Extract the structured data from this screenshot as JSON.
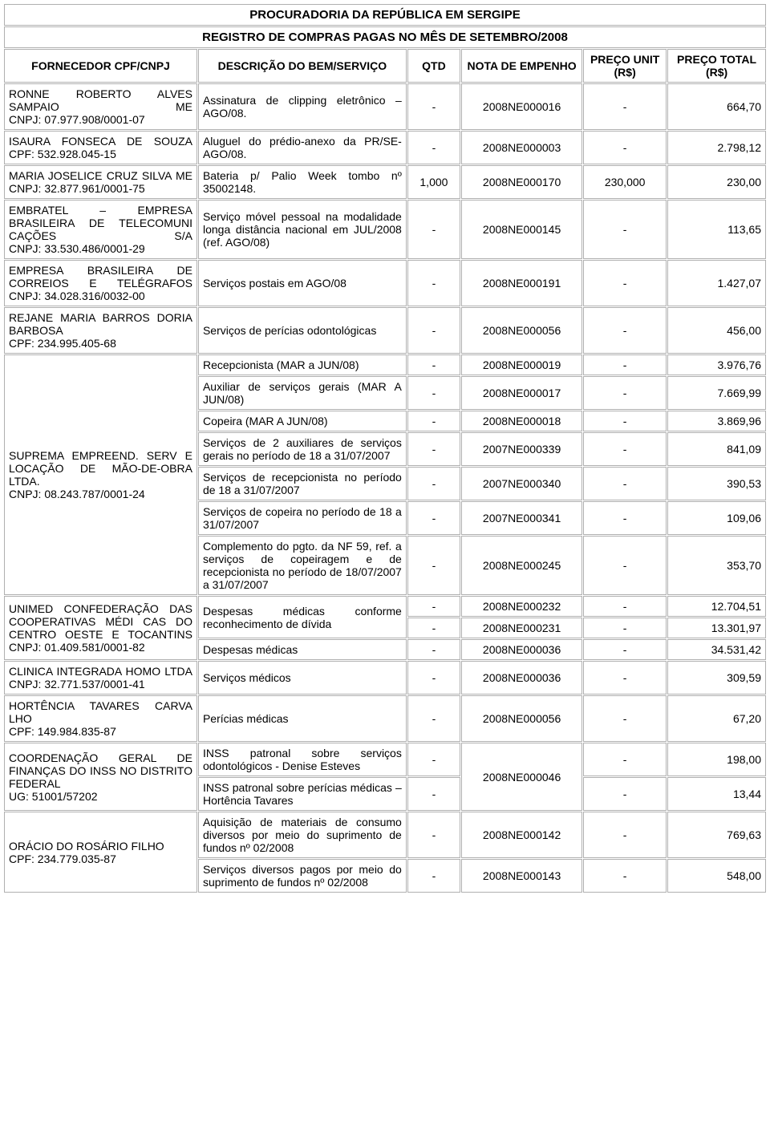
{
  "title1": "PROCURADORIA DA REPÚBLICA EM SERGIPE",
  "title2": "REGISTRO DE COMPRAS PAGAS NO MÊS DE SETEMBRO/2008",
  "headers": {
    "fornecedor": "FORNECEDOR CPF/CNPJ",
    "descricao": "DESCRIÇÃO DO BEM/SERVIÇO",
    "qtd": "QTD",
    "nota": "NOTA DE EMPENHO",
    "unit": "PREÇO UNIT (R$)",
    "total": "PREÇO TOTAL (R$)"
  },
  "s1": {
    "l1": "RONNE ROBERTO ALVES SAMPAIO ME",
    "l2": "CNPJ: 07.977.908/0001-07"
  },
  "r1": {
    "desc": "Assinatura de clipping eletrônico – AGO/08.",
    "qtd": "-",
    "nota": "2008NE000016",
    "unit": "-",
    "total": "664,70"
  },
  "s2": {
    "l1": "ISAURA FONSECA DE SOUZA",
    "l2": "CPF: 532.928.045-15"
  },
  "r2": {
    "desc": "Aluguel do prédio-anexo da PR/SE- AGO/08.",
    "qtd": "-",
    "nota": "2008NE000003",
    "unit": "-",
    "total": "2.798,12"
  },
  "s3": {
    "l1": "MARIA JOSELICE CRUZ SILVA ME",
    "l2": "CNPJ: 32.877.961/0001-75"
  },
  "r3": {
    "desc": "Bateria p/ Palio Week tombo nº 35002148.",
    "qtd": "1,000",
    "nota": "2008NE000170",
    "unit": "230,000",
    "total": "230,00"
  },
  "s4": {
    "l1": "EMBRATEL – EMPRESA BRASILEIRA DE TELECOMUNI CAÇÕES S/A",
    "l2": "CNPJ: 33.530.486/0001-29"
  },
  "r4": {
    "desc": "Serviço móvel pessoal na modalidade longa distância nacional em JUL/2008 (ref. AGO/08)",
    "qtd": "-",
    "nota": "2008NE000145",
    "unit": "-",
    "total": "113,65"
  },
  "s5": {
    "l1": "EMPRESA BRASILEIRA DE CORREIOS E TELÉGRAFOS",
    "l2": "CNPJ: 34.028.316/0032-00"
  },
  "r5": {
    "desc": "Serviços postais em AGO/08",
    "qtd": "-",
    "nota": "2008NE000191",
    "unit": "-",
    "total": "1.427,07"
  },
  "s6": {
    "l1": "REJANE MARIA BARROS DORIA BARBOSA",
    "l2": "CPF: 234.995.405-68"
  },
  "r6": {
    "desc": "Serviços de perícias odontológicas",
    "qtd": "-",
    "nota": "2008NE000056",
    "unit": "-",
    "total": "456,00"
  },
  "s7": {
    "l1": "SUPREMA EMPREEND. SERV E LOCAÇÃO DE MÃO-DE-OBRA LTDA.",
    "l2": "CNPJ: 08.243.787/0001-24"
  },
  "r7a": {
    "desc": "Recepcionista (MAR a JUN/08)",
    "qtd": "-",
    "nota": "2008NE000019",
    "unit": "-",
    "total": "3.976,76"
  },
  "r7b": {
    "desc": "Auxiliar de serviços gerais (MAR A JUN/08)",
    "qtd": "-",
    "nota": "2008NE000017",
    "unit": "-",
    "total": "7.669,99"
  },
  "r7c": {
    "desc": "Copeira (MAR A JUN/08)",
    "qtd": "-",
    "nota": "2008NE000018",
    "unit": "-",
    "total": "3.869,96"
  },
  "r7d": {
    "desc": "Serviços de 2 auxiliares de serviços gerais no período de 18 a 31/07/2007",
    "qtd": "-",
    "nota": "2007NE000339",
    "unit": "-",
    "total": "841,09"
  },
  "r7e": {
    "desc": "Serviços de recepcionista no período de 18 a 31/07/2007",
    "qtd": "-",
    "nota": "2007NE000340",
    "unit": "-",
    "total": "390,53"
  },
  "r7f": {
    "desc": "Serviços de copeira no período de 18 a 31/07/2007",
    "qtd": "-",
    "nota": "2007NE000341",
    "unit": "-",
    "total": "109,06"
  },
  "r7g": {
    "desc": "Complemento do pgto. da NF 59, ref. a serviços de copeiragem e de recepcionista no período de 18/07/2007 a 31/07/2007",
    "qtd": "-",
    "nota": "2008NE000245",
    "unit": "-",
    "total": "353,70"
  },
  "s8": {
    "l1": "UNIMED CONFEDERAÇÃO DAS COOPERATIVAS MÉDI CAS DO CENTRO OESTE E TOCANTINS",
    "l2": "CNPJ: 01.409.581/0001-82"
  },
  "r8a": {
    "desc": "Despesas médicas conforme reconhecimento de dívida",
    "qtd": "-",
    "nota": "2008NE000232",
    "unit": "-",
    "total": "12.704,51"
  },
  "r8b": {
    "qtd": "-",
    "nota": "2008NE000231",
    "unit": "-",
    "total": "13.301,97"
  },
  "r8c": {
    "desc": "Despesas médicas",
    "qtd": "-",
    "nota": "2008NE000036",
    "unit": "-",
    "total": "34.531,42"
  },
  "s9": {
    "l1": "CLINICA INTEGRADA HOMO LTDA",
    "l2": "CNPJ: 32.771.537/0001-41"
  },
  "r9": {
    "desc": "Serviços médicos",
    "qtd": "-",
    "nota": "2008NE000036",
    "unit": "-",
    "total": "309,59"
  },
  "s10": {
    "l1": "HORTÊNCIA TAVARES CARVA LHO",
    "l2": "CPF: 149.984.835-87"
  },
  "r10": {
    "desc": "Perícias médicas",
    "qtd": "-",
    "nota": "2008NE000056",
    "unit": "-",
    "total": "67,20"
  },
  "s11": {
    "l1": "COORDENAÇÃO GERAL DE FINANÇAS DO INSS NO DISTRITO FEDERAL",
    "l2": "UG: 51001/57202"
  },
  "r11a": {
    "desc": "INSS patronal sobre serviços odontológicos - Denise Esteves",
    "qtd": "-",
    "nota": "2008NE000046",
    "unit": "-",
    "total": "198,00"
  },
  "r11b": {
    "desc": "INSS patronal sobre perícias médicas – Hortência Tavares",
    "qtd": "-",
    "unit": "-",
    "total": "13,44"
  },
  "s12": {
    "l1": "ORÁCIO DO ROSÁRIO FILHO",
    "l2": "CPF: 234.779.035-87"
  },
  "r12a": {
    "desc": "Aquisição de materiais de consumo diversos por meio do suprimento de fundos nº 02/2008",
    "qtd": "-",
    "nota": "2008NE000142",
    "unit": "-",
    "total": "769,63"
  },
  "r12b": {
    "desc": "Serviços diversos pagos por meio do suprimento de fundos nº 02/2008",
    "qtd": "-",
    "nota": "2008NE000143",
    "unit": "-",
    "total": "548,00"
  }
}
